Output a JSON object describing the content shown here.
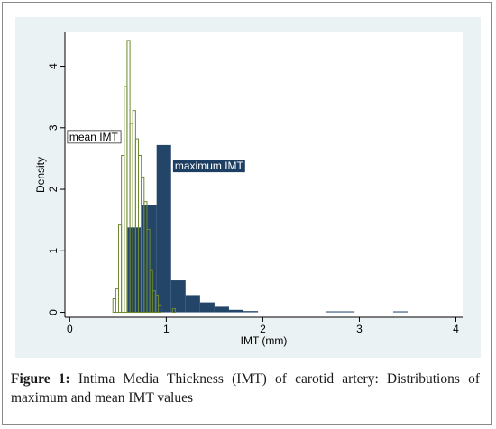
{
  "chart_data": {
    "type": "bar",
    "xlabel": "IMT (mm)",
    "ylabel": "Density",
    "xlim": [
      -0.05,
      4.07
    ],
    "ylim": [
      -0.08,
      4.55
    ],
    "xticks": [
      0,
      1,
      2,
      3,
      4
    ],
    "yticks": [
      0,
      1,
      2,
      3,
      4
    ],
    "series": [
      {
        "name": "maximum IMT",
        "color": "#1c3f63",
        "fill": "solid",
        "bin_width": 0.15,
        "bins": [
          {
            "x0": 0.6,
            "y": 1.38
          },
          {
            "x0": 0.75,
            "y": 1.75
          },
          {
            "x0": 0.9,
            "y": 2.72
          },
          {
            "x0": 1.05,
            "y": 0.52
          },
          {
            "x0": 1.2,
            "y": 0.28
          },
          {
            "x0": 1.35,
            "y": 0.16
          },
          {
            "x0": 1.5,
            "y": 0.09
          },
          {
            "x0": 1.65,
            "y": 0.04
          },
          {
            "x0": 1.8,
            "y": 0.02
          },
          {
            "x0": 2.65,
            "y": 0.015
          },
          {
            "x0": 2.8,
            "y": 0.015
          },
          {
            "x0": 3.35,
            "y": 0.015
          }
        ]
      },
      {
        "name": "mean IMT",
        "color": "#6e8a2e",
        "fill": "outline",
        "bin_width": 0.0294,
        "bins": [
          {
            "x0": 0.447,
            "y": 0.22
          },
          {
            "x0": 0.4764,
            "y": 0.38
          },
          {
            "x0": 0.5058,
            "y": 1.42
          },
          {
            "x0": 0.5352,
            "y": 2.55
          },
          {
            "x0": 0.5646,
            "y": 3.67
          },
          {
            "x0": 0.594,
            "y": 4.42
          },
          {
            "x0": 0.6234,
            "y": 3.07
          },
          {
            "x0": 0.6528,
            "y": 3.28
          },
          {
            "x0": 0.6822,
            "y": 2.82
          },
          {
            "x0": 0.7116,
            "y": 2.55
          },
          {
            "x0": 0.741,
            "y": 2.2
          },
          {
            "x0": 0.7704,
            "y": 1.8
          },
          {
            "x0": 0.7998,
            "y": 1.35
          },
          {
            "x0": 0.8292,
            "y": 0.68
          },
          {
            "x0": 0.8586,
            "y": 0.35
          },
          {
            "x0": 0.888,
            "y": 0.28
          },
          {
            "x0": 0.9174,
            "y": 0.12
          },
          {
            "x0": 1.0644,
            "y": 0.06
          }
        ]
      }
    ],
    "annotations": [
      {
        "text": "mean IMT",
        "style": "white-box",
        "x": 0.53,
        "y": 2.75
      },
      {
        "text": "maximum IMT",
        "style": "dark-box",
        "x": 1.07,
        "y": 2.38
      }
    ]
  },
  "caption": {
    "label": "Figure 1:",
    "text": " Intima Media Thickness (IMT) of carotid artery: Distributions of maximum and mean IMT values"
  }
}
